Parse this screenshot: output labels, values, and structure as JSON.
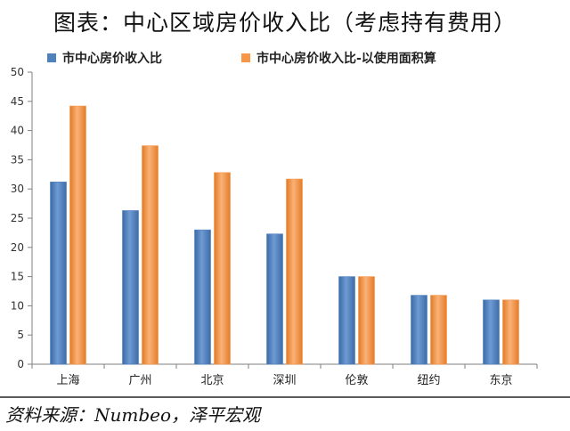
{
  "header": {
    "title": "图表：中心区域房价收入比（考虑持有费用）"
  },
  "footer": {
    "source": "资料来源：Numbeo，泽平宏观"
  },
  "chart_data": {
    "type": "bar",
    "categories": [
      "上海",
      "广州",
      "北京",
      "深圳",
      "伦敦",
      "纽约",
      "东京"
    ],
    "series": [
      {
        "name": "市中心房价收入比",
        "color": "#4f81bd",
        "values": [
          31.2,
          26.3,
          23.0,
          22.3,
          15.0,
          11.8,
          11.0
        ]
      },
      {
        "name": "市中心房价收入比-以使用面积算",
        "color": "#f79646",
        "values": [
          44.2,
          37.4,
          32.8,
          31.7,
          15.0,
          11.8,
          11.0
        ]
      }
    ],
    "ylim": [
      0,
      50
    ],
    "yticks": [
      0,
      5,
      10,
      15,
      20,
      25,
      30,
      35,
      40,
      45,
      50
    ],
    "grid": false,
    "legend_position": "top",
    "title": "图表：中心区域房价收入比（考虑持有费用）",
    "xlabel": "",
    "ylabel": ""
  }
}
